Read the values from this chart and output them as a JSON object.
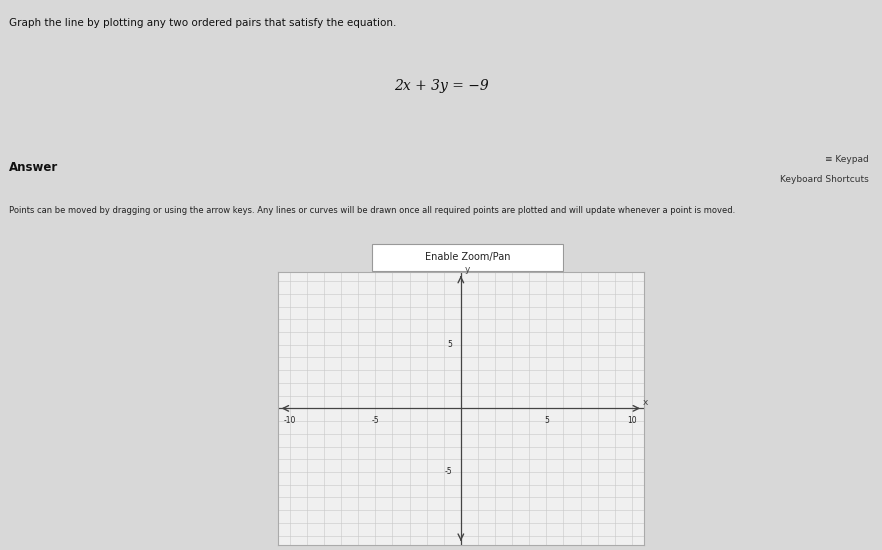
{
  "title_text": "Graph the line by plotting any two ordered pairs that satisfy the equation.",
  "equation": "2x + 3y = −9",
  "answer_label": "Answer",
  "keypad_label": "≡ Keypad",
  "keyboard_shortcuts_label": "Keyboard Shortcuts",
  "instruction_text": "Points can be moved by dragging or using the arrow keys. Any lines or curves will be drawn once all required points are plotted and will update whenever a point is moved.",
  "zoom_pan_label": "Enable Zoom/Pan",
  "xmin": -10,
  "xmax": 10,
  "ymin": -10,
  "ymax": 10,
  "xtick_labels": [
    "-10",
    "-5",
    "5",
    "10"
  ],
  "xtick_vals": [
    -10,
    -5,
    5,
    10
  ],
  "ytick_labels": [
    "5",
    "-5"
  ],
  "ytick_vals": [
    5,
    -5
  ],
  "grid_color": "#c8c8c8",
  "axis_color": "#444444",
  "bg_outer": "#d8d8d8",
  "bg_top": "#e0e0e0",
  "bg_answer": "#e0e0e0",
  "graph_bg": "#f0f0f0",
  "xlabel": "x",
  "ylabel": "y"
}
